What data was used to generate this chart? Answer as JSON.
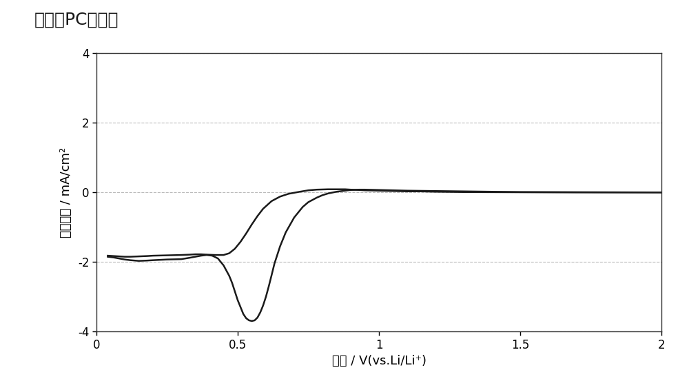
{
  "title": "不含有PC电解液",
  "xlabel": "电位 / V(vs.Li/Li⁺)",
  "ylabel": "电流密度 / mA/cm²",
  "xlim": [
    0,
    2
  ],
  "ylim": [
    -4,
    4
  ],
  "xticks": [
    0,
    0.5,
    1,
    1.5,
    2
  ],
  "yticks": [
    -4,
    -2,
    0,
    2,
    4
  ],
  "background_color": "#ffffff",
  "plot_bg_color": "#ffffff",
  "line_color": "#1a1a1a",
  "grid_color": "#bbbbbb",
  "title_fontsize": 18,
  "label_fontsize": 13,
  "curve1_x": [
    0.04,
    0.06,
    0.08,
    0.1,
    0.12,
    0.15,
    0.18,
    0.2,
    0.25,
    0.3,
    0.33,
    0.35,
    0.37,
    0.39,
    0.41,
    0.43,
    0.45,
    0.47,
    0.48,
    0.49,
    0.5,
    0.51,
    0.52,
    0.53,
    0.54,
    0.55,
    0.56,
    0.57,
    0.58,
    0.59,
    0.6,
    0.61,
    0.62,
    0.63,
    0.65,
    0.67,
    0.7,
    0.73,
    0.75,
    0.78,
    0.8,
    0.82,
    0.85,
    0.88,
    0.9,
    0.93,
    0.95,
    1.0,
    1.05,
    1.1,
    1.2,
    1.3,
    1.5,
    1.7,
    1.9,
    2.0
  ],
  "curve1_y": [
    -1.85,
    -1.87,
    -1.9,
    -1.93,
    -1.95,
    -1.97,
    -1.96,
    -1.95,
    -1.93,
    -1.92,
    -1.88,
    -1.85,
    -1.82,
    -1.8,
    -1.82,
    -1.9,
    -2.1,
    -2.4,
    -2.6,
    -2.85,
    -3.1,
    -3.3,
    -3.5,
    -3.62,
    -3.68,
    -3.7,
    -3.68,
    -3.6,
    -3.45,
    -3.25,
    -3.0,
    -2.7,
    -2.38,
    -2.05,
    -1.55,
    -1.15,
    -0.72,
    -0.42,
    -0.28,
    -0.15,
    -0.08,
    -0.03,
    0.02,
    0.05,
    0.07,
    0.08,
    0.08,
    0.07,
    0.06,
    0.05,
    0.04,
    0.03,
    0.01,
    0.005,
    0.001,
    0.0
  ],
  "curve2_x": [
    0.04,
    0.06,
    0.08,
    0.1,
    0.12,
    0.15,
    0.18,
    0.2,
    0.25,
    0.3,
    0.33,
    0.35,
    0.37,
    0.39,
    0.42,
    0.45,
    0.47,
    0.49,
    0.51,
    0.53,
    0.55,
    0.57,
    0.59,
    0.62,
    0.65,
    0.68,
    0.72,
    0.75,
    0.78,
    0.82,
    0.85,
    0.88,
    0.9,
    0.93,
    0.95,
    1.0,
    1.05,
    1.1,
    1.15,
    1.2,
    1.3,
    1.5,
    1.7,
    1.9,
    2.0
  ],
  "curve2_y": [
    -1.82,
    -1.83,
    -1.84,
    -1.85,
    -1.85,
    -1.84,
    -1.83,
    -1.82,
    -1.81,
    -1.8,
    -1.79,
    -1.78,
    -1.78,
    -1.79,
    -1.8,
    -1.8,
    -1.75,
    -1.62,
    -1.42,
    -1.18,
    -0.92,
    -0.68,
    -0.47,
    -0.25,
    -0.12,
    -0.04,
    0.02,
    0.06,
    0.08,
    0.09,
    0.09,
    0.09,
    0.08,
    0.07,
    0.06,
    0.05,
    0.04,
    0.03,
    0.03,
    0.02,
    0.01,
    0.005,
    0.002,
    0.001,
    0.0
  ]
}
